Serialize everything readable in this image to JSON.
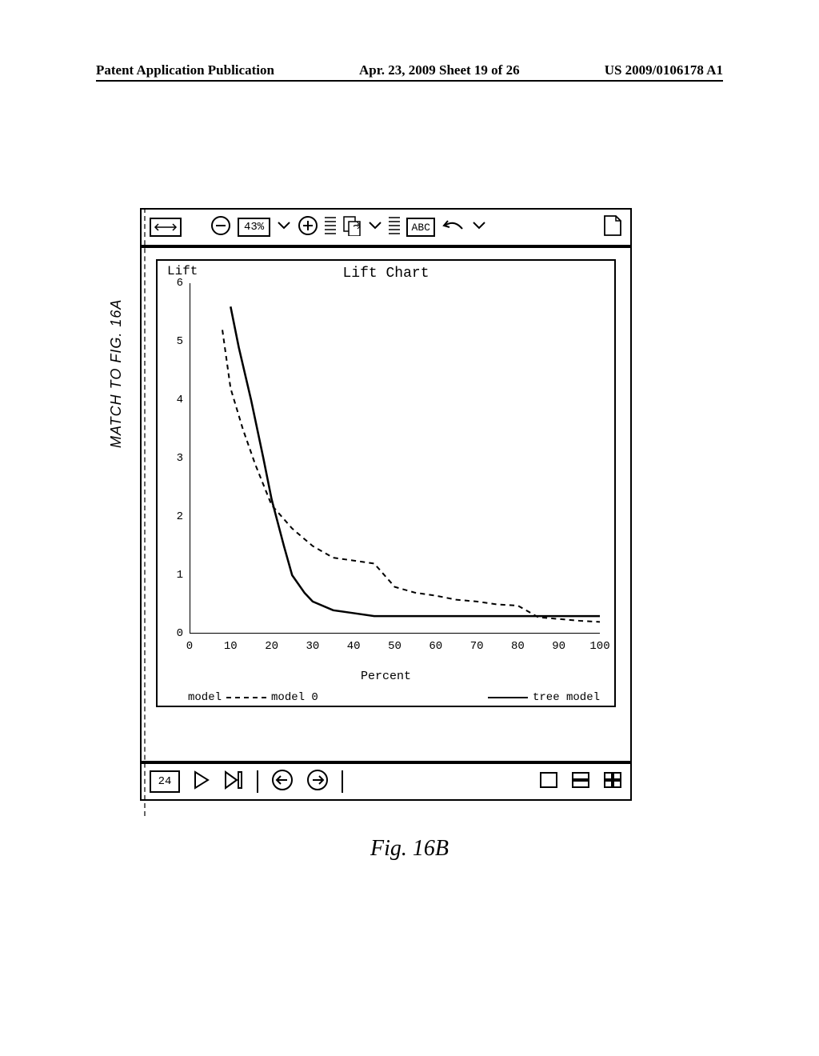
{
  "header": {
    "left": "Patent Application Publication",
    "center": "Apr. 23, 2009  Sheet 19 of 26",
    "right": "US 2009/0106178 A1"
  },
  "match_label": "MATCH TO FIG. 16A",
  "toolbar": {
    "zoom_value": "43%"
  },
  "chart": {
    "title": "Lift Chart",
    "y_axis_label": "Lift",
    "x_axis_label": "Percent",
    "type": "line",
    "xlim": [
      0,
      100
    ],
    "ylim": [
      0,
      6
    ],
    "x_ticks": [
      0,
      10,
      20,
      30,
      40,
      50,
      60,
      70,
      80,
      90,
      100
    ],
    "y_ticks": [
      0,
      1,
      2,
      3,
      4,
      5,
      6
    ],
    "background_color": "#ffffff",
    "axis_color": "#000000",
    "series": [
      {
        "name": "model 0",
        "style": "dashed",
        "color": "#000000",
        "width": 2,
        "points": [
          [
            8,
            5.2
          ],
          [
            10,
            4.2
          ],
          [
            13,
            3.5
          ],
          [
            16,
            2.9
          ],
          [
            20,
            2.2
          ],
          [
            25,
            1.8
          ],
          [
            30,
            1.5
          ],
          [
            35,
            1.3
          ],
          [
            40,
            1.25
          ],
          [
            45,
            1.2
          ],
          [
            50,
            0.8
          ],
          [
            55,
            0.7
          ],
          [
            60,
            0.65
          ],
          [
            65,
            0.58
          ],
          [
            70,
            0.55
          ],
          [
            75,
            0.5
          ],
          [
            80,
            0.48
          ],
          [
            85,
            0.28
          ],
          [
            90,
            0.25
          ],
          [
            95,
            0.22
          ],
          [
            100,
            0.2
          ]
        ]
      },
      {
        "name": "tree model",
        "style": "solid",
        "color": "#000000",
        "width": 2.5,
        "points": [
          [
            10,
            5.6
          ],
          [
            12,
            4.9
          ],
          [
            15,
            4.0
          ],
          [
            18,
            3.0
          ],
          [
            20,
            2.3
          ],
          [
            23,
            1.5
          ],
          [
            25,
            1.0
          ],
          [
            28,
            0.7
          ],
          [
            30,
            0.55
          ],
          [
            35,
            0.4
          ],
          [
            40,
            0.35
          ],
          [
            45,
            0.3
          ],
          [
            50,
            0.3
          ],
          [
            55,
            0.3
          ],
          [
            60,
            0.3
          ],
          [
            65,
            0.3
          ],
          [
            70,
            0.3
          ],
          [
            75,
            0.3
          ],
          [
            80,
            0.3
          ],
          [
            85,
            0.3
          ],
          [
            90,
            0.3
          ],
          [
            95,
            0.3
          ],
          [
            100,
            0.3
          ]
        ]
      }
    ],
    "legend": {
      "model_label": "model",
      "model0_label": "model 0",
      "tree_label": "tree model"
    }
  },
  "bottom_bar": {
    "page_value": "24"
  },
  "figure_caption": "Fig. 16B"
}
